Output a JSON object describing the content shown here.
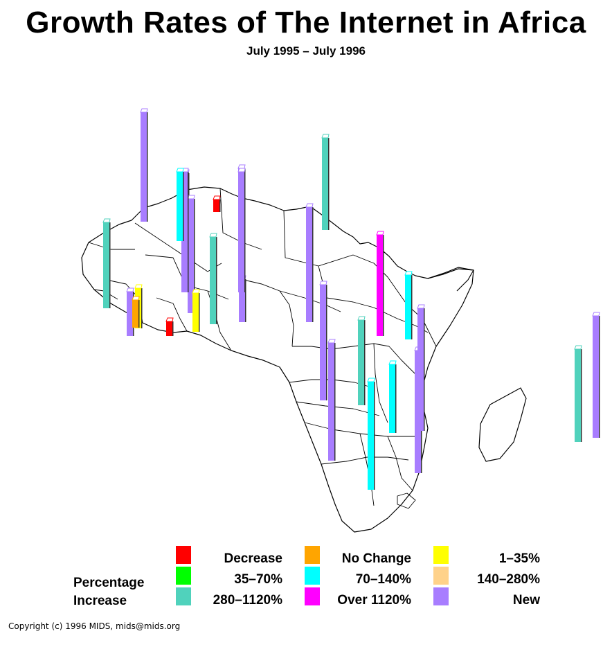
{
  "chart_data": {
    "type": "bar",
    "title": "Growth Rates of The Internet in Africa",
    "subtitle": "July 1995  –  July 1996",
    "description_units": "bars plotted over country locations on a map of Africa; height indicates relative internet growth",
    "legend_title": [
      "Percentage",
      "Increase"
    ],
    "categories": [
      {
        "key": "decrease",
        "label": "Decrease",
        "color": "#ff0000"
      },
      {
        "key": "no_change",
        "label": "No Change",
        "color": "#ffa500"
      },
      {
        "key": "r1_35",
        "label": "1–35%",
        "color": "#ffff00"
      },
      {
        "key": "r35_70",
        "label": "35–70%",
        "color": "#00ff00"
      },
      {
        "key": "r70_140",
        "label": "70–140%",
        "color": "#00ffff"
      },
      {
        "key": "r140_280",
        "label": "140–280%",
        "color": "#ffd28a"
      },
      {
        "key": "r280_1120",
        "label": "280–1120%",
        "color": "#50d2bc"
      },
      {
        "key": "over1120",
        "label": "Over 1120%",
        "color": "#ff00ff"
      },
      {
        "key": "new",
        "label": "New",
        "color": "#a87dff"
      }
    ],
    "bars": [
      {
        "cat": "new",
        "value": 158
      },
      {
        "cat": "r280_1120",
        "value": 124
      },
      {
        "cat": "new",
        "value": 64
      },
      {
        "cat": "r1_35",
        "value": 58
      },
      {
        "cat": "new",
        "value": 165
      },
      {
        "cat": "new",
        "value": 165
      },
      {
        "cat": "decrease",
        "value": 18
      },
      {
        "cat": "new",
        "value": 165
      },
      {
        "cat": "new",
        "value": 62
      },
      {
        "cat": "r280_1120",
        "value": 126
      },
      {
        "cat": "new",
        "value": 166
      },
      {
        "cat": "new",
        "value": 167
      },
      {
        "cat": "new",
        "value": 170
      },
      {
        "cat": "new",
        "value": 177
      },
      {
        "cat": "r280_1120",
        "value": 123
      },
      {
        "cat": "over1120",
        "value": 146
      },
      {
        "cat": "r70_140",
        "value": 93
      },
      {
        "cat": "new",
        "value": 177
      },
      {
        "cat": "r280_1120",
        "value": 133
      },
      {
        "cat": "r70_140",
        "value": 156
      },
      {
        "cat": "r70_140",
        "value": 99
      },
      {
        "cat": "new",
        "value": 176
      },
      {
        "cat": "no_change",
        "value": 40
      },
      {
        "cat": "r1_35",
        "value": 56
      },
      {
        "cat": "decrease",
        "value": 21
      },
      {
        "cat": "new",
        "value": 174
      },
      {
        "cat": "r280_1120",
        "value": 134
      },
      {
        "cat": "new",
        "value": 174
      },
      {
        "cat": "r70_140",
        "value": 100
      }
    ]
  },
  "copyright": "Copyright (c) 1996 MIDS, mids@mids.org"
}
